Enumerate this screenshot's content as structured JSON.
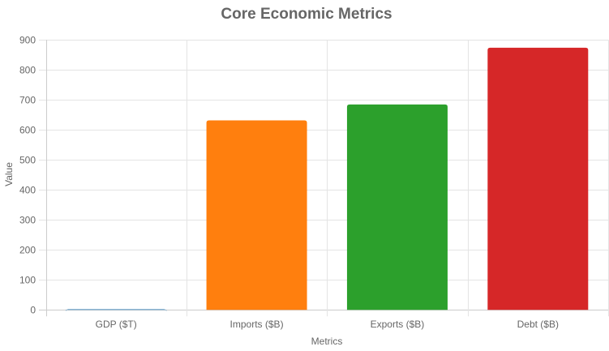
{
  "chart_data": {
    "type": "bar",
    "title": "Core Economic Metrics",
    "xlabel": "Metrics",
    "ylabel": "Value",
    "categories": [
      "GDP ($T)",
      "Imports ($B)",
      "Exports ($B)",
      "Debt ($B)"
    ],
    "values": [
      2,
      632,
      685,
      874
    ],
    "colors": [
      "#1f77b4",
      "#ff7f0e",
      "#2ca02c",
      "#d62728"
    ],
    "ylim": [
      0,
      900
    ],
    "yticks": [
      0,
      100,
      200,
      300,
      400,
      500,
      600,
      700,
      800,
      900
    ],
    "grid": true,
    "legend": "none"
  }
}
